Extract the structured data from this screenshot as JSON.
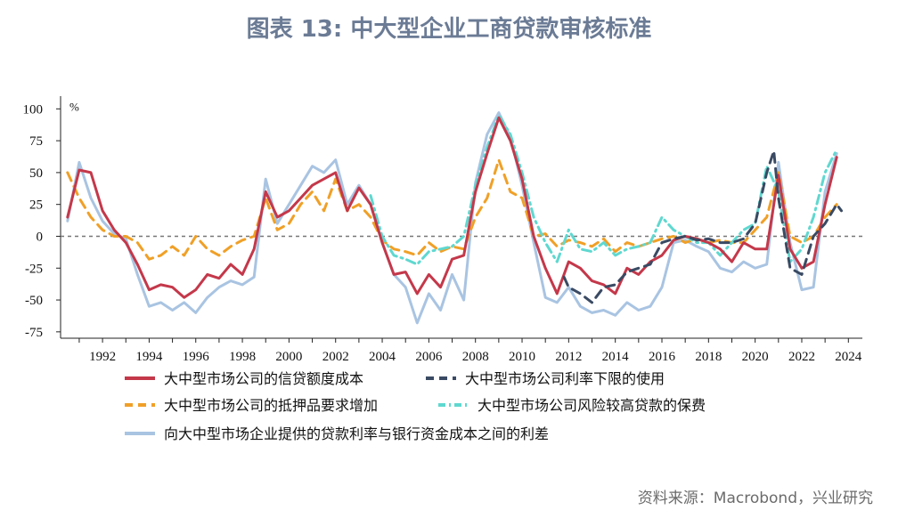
{
  "title": "图表 13: 中大型企业工商贷款审核标准",
  "source": "资料来源：Macrobond，兴业研究",
  "chart_data": {
    "type": "line",
    "title": "图表 13: 中大型企业工商贷款审核标准",
    "ylabel": "%",
    "xlabel": "",
    "xlim": [
      1990.2,
      2024.6
    ],
    "ylim": [
      -80,
      110
    ],
    "yticks": [
      100,
      75,
      50,
      25,
      0,
      -25,
      -50,
      -75
    ],
    "xticks": [
      1992,
      1994,
      1996,
      1998,
      2000,
      2002,
      2004,
      2006,
      2008,
      2010,
      2012,
      2014,
      2016,
      2018,
      2020,
      2022,
      2024
    ],
    "zero_line": true,
    "series": [
      {
        "name": "大中型市场公司的信贷额度成本",
        "color": "#c4384a",
        "style": "solid",
        "x": [
          1990.5,
          1991.0,
          1991.5,
          1992.0,
          1992.5,
          1993.0,
          1993.5,
          1994.0,
          1994.5,
          1995.0,
          1995.5,
          1996.0,
          1996.5,
          1997.0,
          1997.5,
          1998.0,
          1998.5,
          1999.0,
          1999.5,
          2000.0,
          2000.5,
          2001.0,
          2001.5,
          2002.0,
          2002.5,
          2003.0,
          2003.5,
          2004.0,
          2004.5,
          2005.0,
          2005.5,
          2006.0,
          2006.5,
          2007.0,
          2007.5,
          2008.0,
          2008.5,
          2009.0,
          2009.5,
          2010.0,
          2010.5,
          2011.0,
          2011.5,
          2012.0,
          2012.5,
          2013.0,
          2013.5,
          2014.0,
          2014.5,
          2015.0,
          2015.5,
          2016.0,
          2016.5,
          2017.0,
          2017.5,
          2018.0,
          2018.5,
          2019.0,
          2019.5,
          2020.0,
          2020.5,
          2021.0,
          2021.5,
          2022.0,
          2022.5,
          2023.0,
          2023.5
        ],
        "values": [
          15,
          52,
          50,
          20,
          5,
          -5,
          -22,
          -42,
          -38,
          -40,
          -48,
          -42,
          -30,
          -33,
          -22,
          -30,
          -10,
          35,
          15,
          20,
          30,
          40,
          45,
          50,
          20,
          38,
          25,
          -5,
          -30,
          -28,
          -45,
          -30,
          -40,
          -18,
          -15,
          35,
          65,
          93,
          75,
          45,
          0,
          -25,
          -45,
          -20,
          -25,
          -35,
          -38,
          -45,
          -25,
          -30,
          -20,
          -15,
          -3,
          0,
          -2,
          -5,
          -10,
          -20,
          -5,
          -10,
          -10,
          48,
          -10,
          -25,
          -20,
          25,
          62
        ]
      },
      {
        "name": "大中型市场公司利率下限的使用",
        "color": "#3a4a63",
        "style": "dashed",
        "x": [
          2011.8,
          2012.0,
          2012.5,
          2013.0,
          2013.5,
          2014.0,
          2014.5,
          2015.0,
          2015.5,
          2016.0,
          2016.5,
          2017.0,
          2017.5,
          2018.0,
          2018.5,
          2019.0,
          2019.5,
          2020.0,
          2020.5,
          2020.8,
          2021.0,
          2021.5,
          2022.0,
          2022.5,
          2023.0,
          2023.5,
          2023.7
        ],
        "values": [
          -32,
          -40,
          -45,
          -52,
          -40,
          -38,
          -28,
          -25,
          -22,
          -5,
          -2,
          0,
          -3,
          -2,
          -5,
          -5,
          -2,
          10,
          50,
          67,
          30,
          -25,
          -30,
          0,
          10,
          25,
          20
        ]
      },
      {
        "name": "大中型市场公司的抵押品要求增加",
        "color": "#f0a027",
        "style": "dashed",
        "x": [
          1990.5,
          1991.0,
          1991.5,
          1992.0,
          1992.5,
          1993.0,
          1993.5,
          1994.0,
          1994.5,
          1995.0,
          1995.5,
          1996.0,
          1996.5,
          1997.0,
          1997.5,
          1998.0,
          1998.5,
          1999.0,
          1999.5,
          2000.0,
          2000.5,
          2001.0,
          2001.5,
          2002.0,
          2002.5,
          2003.0,
          2003.5,
          2004.0,
          2004.5,
          2005.0,
          2005.5,
          2006.0,
          2006.5,
          2007.0,
          2007.5,
          2008.0,
          2008.5,
          2009.0,
          2009.5,
          2010.0,
          2010.5,
          2011.0,
          2011.5,
          2012.0,
          2012.5,
          2013.0,
          2013.5,
          2014.0,
          2014.5,
          2015.0,
          2015.5,
          2016.0,
          2016.5,
          2017.0,
          2017.5,
          2018.0,
          2018.5,
          2019.0,
          2019.5,
          2020.0,
          2020.5,
          2021.0,
          2021.5,
          2022.0,
          2022.5,
          2023.0,
          2023.5
        ],
        "values": [
          50,
          30,
          15,
          5,
          0,
          0,
          -5,
          -18,
          -15,
          -8,
          -15,
          0,
          -10,
          -15,
          -8,
          -3,
          0,
          30,
          5,
          10,
          25,
          35,
          20,
          45,
          20,
          25,
          15,
          -3,
          -10,
          -12,
          -15,
          -5,
          -12,
          -8,
          -10,
          15,
          30,
          60,
          35,
          30,
          0,
          2,
          -8,
          -3,
          -5,
          -8,
          -2,
          -12,
          -5,
          -8,
          -5,
          -2,
          0,
          -5,
          -2,
          -5,
          -3,
          -5,
          -5,
          5,
          15,
          50,
          0,
          -5,
          0,
          15,
          25
        ]
      },
      {
        "name": "大中型市场公司风险较高贷款的保费",
        "color": "#5fd8d0",
        "style": "dashdot",
        "x": [
          2003.5,
          2004.0,
          2004.5,
          2005.0,
          2005.5,
          2006.0,
          2006.5,
          2007.0,
          2007.5,
          2008.0,
          2008.5,
          2009.0,
          2009.5,
          2010.0,
          2010.5,
          2011.0,
          2011.5,
          2012.0,
          2012.5,
          2013.0,
          2013.5,
          2014.0,
          2014.5,
          2015.0,
          2015.5,
          2016.0,
          2016.5,
          2017.0,
          2017.5,
          2018.0,
          2018.5,
          2019.0,
          2019.5,
          2020.0,
          2020.5,
          2021.0,
          2021.5,
          2022.0,
          2022.5,
          2023.0,
          2023.5
        ],
        "values": [
          32,
          0,
          -15,
          -18,
          -22,
          -12,
          -10,
          -8,
          0,
          40,
          70,
          95,
          80,
          50,
          15,
          -5,
          -20,
          5,
          -10,
          -12,
          -5,
          -15,
          -10,
          -8,
          -5,
          15,
          5,
          0,
          -5,
          -5,
          -15,
          -5,
          5,
          10,
          55,
          35,
          -20,
          -10,
          15,
          50,
          68
        ]
      },
      {
        "name": "向大中型市场企业提供的贷款利率与银行资金成本之间的利差",
        "color": "#a9c4e2",
        "style": "solid",
        "x": [
          1990.5,
          1991.0,
          1991.5,
          1992.0,
          1992.5,
          1993.0,
          1993.5,
          1994.0,
          1994.5,
          1995.0,
          1995.5,
          1996.0,
          1996.5,
          1997.0,
          1997.5,
          1998.0,
          1998.5,
          1999.0,
          1999.5,
          2000.0,
          2000.5,
          2001.0,
          2001.5,
          2002.0,
          2002.5,
          2003.0,
          2003.5,
          2004.0,
          2004.5,
          2005.0,
          2005.5,
          2006.0,
          2006.5,
          2007.0,
          2007.5,
          2008.0,
          2008.5,
          2009.0,
          2009.5,
          2010.0,
          2010.5,
          2011.0,
          2011.5,
          2012.0,
          2012.5,
          2013.0,
          2013.5,
          2014.0,
          2014.5,
          2015.0,
          2015.5,
          2016.0,
          2016.5,
          2017.0,
          2017.5,
          2018.0,
          2018.5,
          2019.0,
          2019.5,
          2020.0,
          2020.5,
          2021.0,
          2021.5,
          2022.0,
          2022.5,
          2023.0,
          2023.5
        ],
        "values": [
          12,
          58,
          30,
          12,
          2,
          -2,
          -30,
          -55,
          -52,
          -58,
          -52,
          -60,
          -48,
          -40,
          -35,
          -38,
          -32,
          45,
          10,
          25,
          40,
          55,
          50,
          60,
          25,
          40,
          25,
          -5,
          -30,
          -40,
          -68,
          -45,
          -58,
          -30,
          -50,
          42,
          80,
          97,
          78,
          40,
          -5,
          -48,
          -52,
          -40,
          -55,
          -60,
          -58,
          -62,
          -52,
          -58,
          -55,
          -40,
          -5,
          -3,
          -8,
          -12,
          -25,
          -28,
          -20,
          -25,
          -22,
          58,
          -5,
          -42,
          -40,
          35,
          65
        ]
      }
    ],
    "legend": [
      "大中型市场公司的信贷额度成本",
      "大中型市场公司利率下限的使用",
      "大中型市场公司的抵押品要求增加",
      "大中型市场公司风险较高贷款的保费",
      "向大中型市场企业提供的贷款利率与银行资金成本之间的利差"
    ]
  }
}
